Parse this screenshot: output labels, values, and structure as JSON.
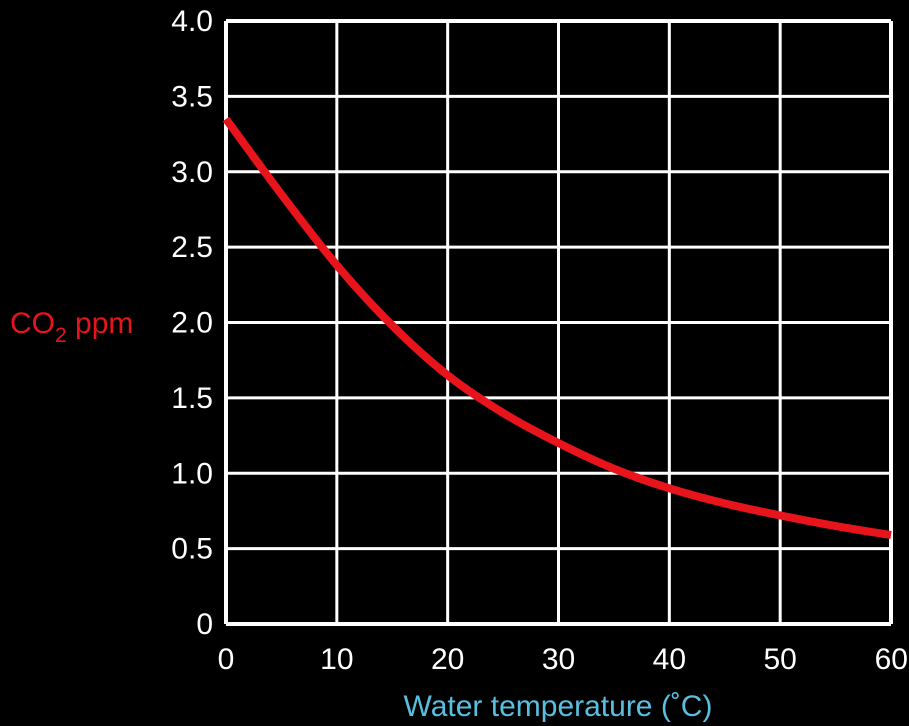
{
  "chart_data": {
    "type": "line",
    "title": "",
    "xlabel": "Water temperature (˚C)",
    "ylabel": {
      "prefix": "CO",
      "subscript": "2",
      "suffix": " ppm"
    },
    "xlim": [
      0,
      60
    ],
    "ylim": [
      0,
      4.0
    ],
    "x_ticks": [
      {
        "value": 0,
        "label": "0"
      },
      {
        "value": 10,
        "label": "10"
      },
      {
        "value": 20,
        "label": "20"
      },
      {
        "value": 30,
        "label": "30"
      },
      {
        "value": 40,
        "label": "40"
      },
      {
        "value": 50,
        "label": "50"
      },
      {
        "value": 60,
        "label": "60"
      }
    ],
    "y_ticks": [
      {
        "value": 0,
        "label": "0"
      },
      {
        "value": 0.5,
        "label": "0.5"
      },
      {
        "value": 1.0,
        "label": "1.0"
      },
      {
        "value": 1.5,
        "label": "1.5"
      },
      {
        "value": 2.0,
        "label": "2.0"
      },
      {
        "value": 2.5,
        "label": "2.5"
      },
      {
        "value": 3.0,
        "label": "3.0"
      },
      {
        "value": 3.5,
        "label": "3.5"
      },
      {
        "value": 4.0,
        "label": "4.0"
      }
    ],
    "grid": true,
    "legend": "none",
    "series": [
      {
        "color": "#e8141b",
        "x": [
          0,
          5,
          10,
          15,
          20,
          25,
          30,
          35,
          40,
          45,
          50,
          55,
          60
        ],
        "y": [
          3.35,
          2.85,
          2.38,
          1.98,
          1.65,
          1.4,
          1.2,
          1.03,
          0.9,
          0.8,
          0.72,
          0.65,
          0.59
        ]
      }
    ],
    "colors": {
      "background": "#000000",
      "grid": "#ffffff",
      "tick_text": "#ffffff",
      "ylabel": "#e8141b",
      "xlabel": "#58bfe0"
    }
  }
}
